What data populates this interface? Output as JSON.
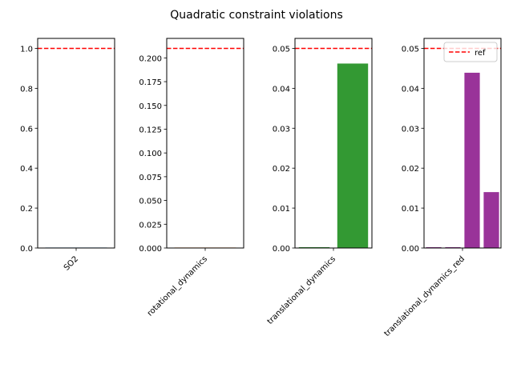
{
  "title": "Quadratic constraint violations",
  "reference_color": "#ff0000",
  "chart_data": [
    {
      "type": "bar",
      "categories": [
        "SO2"
      ],
      "values": [
        0
      ],
      "bar_color": "#1f77b4",
      "ylim": [
        0,
        1.05
      ],
      "yticks": [
        0.0,
        0.2,
        0.4,
        0.6,
        0.8,
        1.0
      ],
      "ytick_labels": [
        "0.0",
        "0.2",
        "0.4",
        "0.6",
        "0.8",
        "1.0"
      ],
      "xtick_label": "SO2",
      "reference_line": 1.0,
      "legend": null
    },
    {
      "type": "bar",
      "categories": [
        "rotational_dynamics"
      ],
      "values": [
        0
      ],
      "bar_color": "#ff7f0e",
      "ylim": [
        0,
        0.2205
      ],
      "yticks": [
        0.0,
        0.025,
        0.05,
        0.075,
        0.1,
        0.125,
        0.15,
        0.175,
        0.2
      ],
      "ytick_labels": [
        "0.000",
        "0.025",
        "0.050",
        "0.075",
        "0.100",
        "0.125",
        "0.150",
        "0.175",
        "0.200"
      ],
      "xtick_label": "rotational_dynamics",
      "reference_line": 0.21,
      "legend": null
    },
    {
      "type": "bar",
      "categories": [
        "0",
        "1"
      ],
      "values": [
        0.0002,
        0.0462
      ],
      "bar_color": "#339933",
      "ylim": [
        0,
        0.0525
      ],
      "yticks": [
        0.0,
        0.01,
        0.02,
        0.03,
        0.04,
        0.05
      ],
      "ytick_labels": [
        "0.00",
        "0.01",
        "0.02",
        "0.03",
        "0.04",
        "0.05"
      ],
      "xtick_label": "translational_dynamics",
      "reference_line": 0.05,
      "legend": null
    },
    {
      "type": "bar",
      "categories": [
        "0",
        "1",
        "2",
        "3"
      ],
      "values": [
        0.0002,
        0.0002,
        0.0439,
        0.014
      ],
      "bar_color": "#993399",
      "ylim": [
        0,
        0.0525
      ],
      "yticks": [
        0.0,
        0.01,
        0.02,
        0.03,
        0.04,
        0.05
      ],
      "ytick_labels": [
        "0.00",
        "0.01",
        "0.02",
        "0.03",
        "0.04",
        "0.05"
      ],
      "xtick_label": "translational_dynamics_red",
      "reference_line": 0.05,
      "legend": {
        "label": "ref",
        "placement": "top-right"
      }
    }
  ]
}
